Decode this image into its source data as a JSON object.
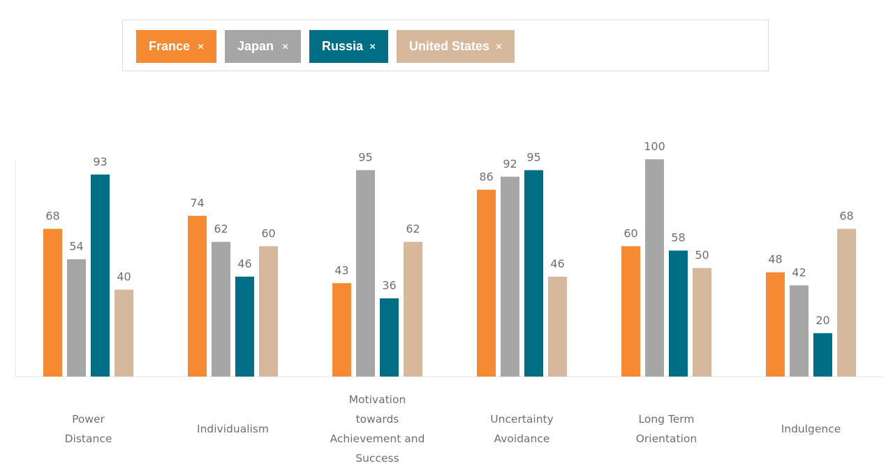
{
  "filters": [
    {
      "label": "France",
      "color": "#F68A33",
      "remove_icon": "close-icon"
    },
    {
      "label": "Japan",
      "color": "#A6A6A6",
      "remove_icon": "close-icon"
    },
    {
      "label": "Russia",
      "color": "#006E85",
      "remove_icon": "close-icon"
    },
    {
      "label": "United States",
      "color": "#D6B99C",
      "remove_icon": "close-icon"
    }
  ],
  "close_glyph": "×",
  "chart_data": {
    "type": "bar",
    "categories": [
      "Power Distance",
      "Individualism",
      "Motivation towards Achievement and Success",
      "Uncertainty Avoidance",
      "Long Term Orientation",
      "Indulgence"
    ],
    "series": [
      {
        "name": "France",
        "color": "#F68A33",
        "values": [
          68,
          74,
          43,
          86,
          60,
          48
        ]
      },
      {
        "name": "Japan",
        "color": "#A6A6A6",
        "values": [
          54,
          62,
          95,
          92,
          100,
          42
        ]
      },
      {
        "name": "Russia",
        "color": "#006E85",
        "values": [
          93,
          46,
          36,
          95,
          58,
          20
        ]
      },
      {
        "name": "United States",
        "color": "#D6B99C",
        "values": [
          40,
          60,
          62,
          46,
          50,
          68
        ]
      }
    ],
    "ylim": [
      0,
      100
    ],
    "data_labels": true,
    "grid": false
  }
}
